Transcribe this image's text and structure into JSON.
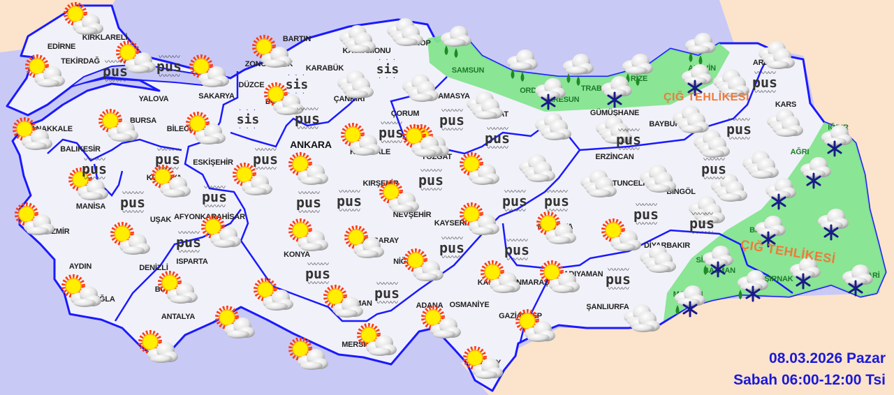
{
  "map": {
    "date": "08.03.2026 Pazar",
    "period": "Sabah 06:00-12:00 Tsi",
    "warnings": [
      "ÇIĞ TEHLİKESİ",
      "ÇIĞ TEHLİKESİ"
    ],
    "haze_label": "pus",
    "fog_label": "sis",
    "colors": {
      "sea": "#c9c9f6",
      "neighbor_land": "#fbe3cc",
      "turkey_land": "#f1f1fa",
      "warning_zone": "#84e48f",
      "border": "#1a1aff",
      "warning_text": "#f07a3a",
      "date_text": "#1a1ad6"
    },
    "cities": [
      "EDİRNE",
      "KIRKLARELİ",
      "TEKİRDAĞ",
      "YALOVA",
      "SAKARYA",
      "DÜZCE",
      "BARTIN",
      "ZONGULDAK",
      "KARABÜK",
      "KASTAMONU",
      "SİNOP",
      "BOLU",
      "ÇANKIRI",
      "AMASYA",
      "SAMSUN",
      "ORDU",
      "GİRESUN",
      "TRABZON",
      "RİZE",
      "ARTVİN",
      "ARDAHAN",
      "KARS",
      "GÜMÜŞHANE",
      "BAYBURT",
      "TOKAT",
      "ÇORUM",
      "ANKARA",
      "KIRIKKALE",
      "YOZGAT",
      "ERZİNCAN",
      "TUNCELİ",
      "BİNGÖL",
      "MUŞ",
      "IĞDIR",
      "AĞRI",
      "BİTLİS",
      "SİİRT",
      "BATMAN",
      "ŞIRNAK",
      "HAKKARİ",
      "MARDİN",
      "DİYARBAKIR",
      "ŞANLIURFA",
      "ADIYAMAN",
      "MALATYA",
      "KAHRAMANMARAŞ",
      "GAZİANTEP",
      "OSMANİYE",
      "ADANA",
      "HATAY",
      "KAYSERİ",
      "NİĞDE",
      "AKSARAY",
      "NEVŞEHİR",
      "KIRŞEHİR",
      "KONYA",
      "KARAMAN",
      "MERSİN",
      "ANTALYA",
      "ISPARTA",
      "BURDUR",
      "DENİZLİ",
      "AYDIN",
      "MUĞLA",
      "İZMİR",
      "MANİSA",
      "UŞAK",
      "AFYONKARAHİSAR",
      "KÜTAHYA",
      "ESKİŞEHİR",
      "BİLECİK",
      "BURSA",
      "BALIKESİR",
      "ÇANAKKALE"
    ],
    "green_cities": [
      "SAMSUN",
      "ORDU",
      "GİRESUN",
      "TRABZON",
      "RİZE",
      "ARTVİN",
      "IĞDIR",
      "AĞRI",
      "BİTLİS",
      "SİİRT",
      "BATMAN",
      "ŞIRNAK",
      "HAKKARİ",
      "MARDİN"
    ],
    "forecast_icons": {
      "partly_cloudy": 40,
      "cloudy": 20,
      "rain": 5,
      "snow": 10,
      "rain_snow": 3,
      "haze": 28,
      "fog": 3
    }
  }
}
